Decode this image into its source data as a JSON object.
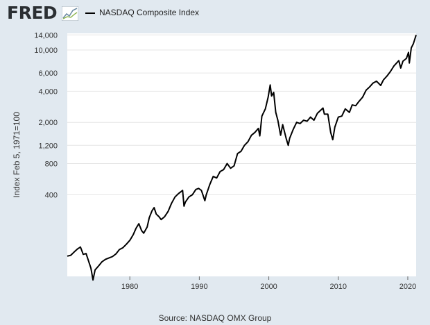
{
  "header": {
    "logo_text": "FRED",
    "logo_icon": "fred-line-graph-icon",
    "legend_label": "NASDAQ Composite Index"
  },
  "colors": {
    "background": "#e1e9f0",
    "plot_background": "#ffffff",
    "series": "#000000",
    "grid": "#e6e6e6"
  },
  "source": "Source: NASDAQ OMX Group",
  "chart_data": {
    "type": "line",
    "title": "",
    "xlabel": "",
    "ylabel": "Index Feb 5, 1971=100",
    "y_scale": "log",
    "ylim": [
      65,
      14500
    ],
    "xlim": [
      1971.0,
      2021.2
    ],
    "grid": true,
    "legend": "top-left",
    "y_ticks": [
      400,
      800,
      1200,
      2000,
      4000,
      6000,
      10000,
      14000
    ],
    "y_tick_labels": [
      "400",
      "800",
      "1,200",
      "2,000",
      "4,000",
      "6,000",
      "10,000",
      "14,000"
    ],
    "x_ticks": [
      1980,
      1990,
      2000,
      2010,
      2020
    ],
    "x_tick_labels": [
      "1980",
      "1990",
      "2000",
      "2010",
      "2020"
    ],
    "series": [
      {
        "name": "NASDAQ Composite Index",
        "x": [
          1971.0,
          1971.5,
          1972.0,
          1972.5,
          1972.9,
          1973.3,
          1973.7,
          1974.0,
          1974.4,
          1974.7,
          1975.0,
          1975.5,
          1976.0,
          1976.5,
          1977.0,
          1977.5,
          1978.0,
          1978.5,
          1979.0,
          1979.5,
          1980.0,
          1980.5,
          1980.9,
          1981.3,
          1981.7,
          1982.0,
          1982.5,
          1982.8,
          1983.2,
          1983.5,
          1983.8,
          1984.2,
          1984.5,
          1985.0,
          1985.5,
          1986.0,
          1986.5,
          1987.0,
          1987.6,
          1987.8,
          1988.0,
          1988.5,
          1989.0,
          1989.5,
          1989.9,
          1990.3,
          1990.8,
          1991.0,
          1991.5,
          1992.0,
          1992.5,
          1993.0,
          1993.5,
          1994.0,
          1994.5,
          1995.0,
          1995.5,
          1996.0,
          1996.5,
          1997.0,
          1997.5,
          1998.0,
          1998.5,
          1998.7,
          1999.0,
          1999.5,
          1999.9,
          2000.2,
          2000.4,
          2000.7,
          2001.0,
          2001.3,
          2001.7,
          2002.0,
          2002.5,
          2002.8,
          2003.0,
          2003.5,
          2004.0,
          2004.5,
          2005.0,
          2005.5,
          2006.0,
          2006.5,
          2007.0,
          2007.8,
          2008.0,
          2008.5,
          2008.9,
          2009.2,
          2009.5,
          2010.0,
          2010.5,
          2011.0,
          2011.6,
          2012.0,
          2012.5,
          2013.0,
          2013.5,
          2014.0,
          2014.5,
          2015.0,
          2015.5,
          2016.1,
          2016.5,
          2017.0,
          2017.5,
          2018.0,
          2018.7,
          2018.98,
          2019.3,
          2019.8,
          2020.1,
          2020.22,
          2020.5,
          2020.8,
          2021.2
        ],
        "values": [
          102,
          104,
          112,
          120,
          125,
          106,
          108,
          94,
          78,
          60,
          75,
          82,
          90,
          95,
          98,
          101,
          107,
          118,
          123,
          133,
          145,
          165,
          190,
          210,
          180,
          170,
          195,
          240,
          280,
          300,
          260,
          245,
          230,
          245,
          275,
          330,
          380,
          410,
          440,
          310,
          340,
          380,
          400,
          450,
          460,
          440,
          350,
          400,
          500,
          600,
          580,
          670,
          700,
          800,
          720,
          760,
          1000,
          1050,
          1200,
          1300,
          1500,
          1600,
          1750,
          1480,
          2300,
          2700,
          3500,
          4600,
          3600,
          3900,
          2500,
          2100,
          1500,
          1900,
          1400,
          1200,
          1400,
          1700,
          2000,
          1950,
          2100,
          2050,
          2250,
          2100,
          2450,
          2750,
          2400,
          2400,
          1600,
          1360,
          1800,
          2250,
          2300,
          2700,
          2500,
          2950,
          2900,
          3200,
          3500,
          4100,
          4400,
          4800,
          5000,
          4550,
          5150,
          5600,
          6200,
          7000,
          7900,
          6700,
          7800,
          8300,
          9500,
          7500,
          10500,
          11500,
          14000
        ]
      }
    ]
  }
}
